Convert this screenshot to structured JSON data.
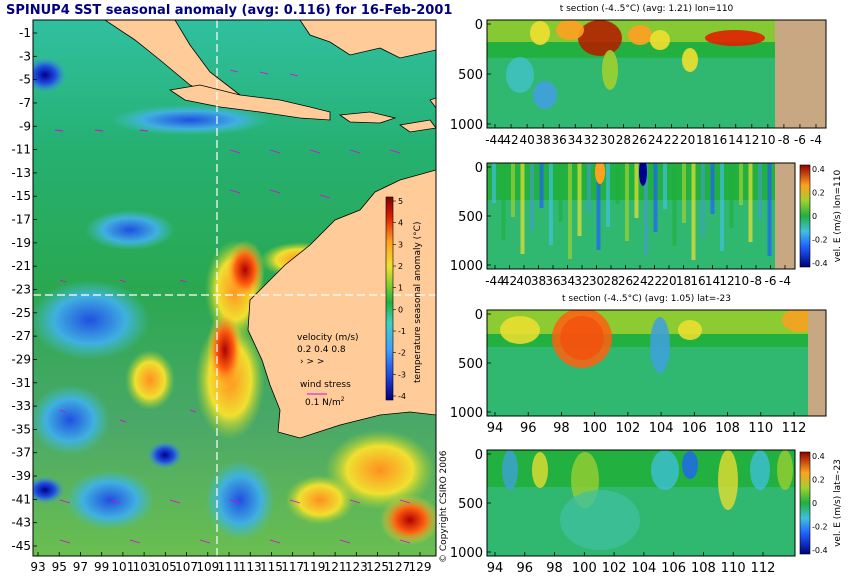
{
  "main_map": {
    "title": "SPINUP4 SST seasonal anomaly (avg: 0.116) for 16-Feb-2001",
    "lat_ticks": [
      "-1",
      "-3",
      "-5",
      "-7",
      "-9",
      "-11",
      "-13",
      "-15",
      "-17",
      "-19",
      "-21",
      "-23",
      "-25",
      "-27",
      "-29",
      "-31",
      "-33",
      "-35",
      "-37",
      "-39",
      "-41",
      "-43",
      "-45"
    ],
    "lon_ticks": [
      "93",
      "95",
      "97",
      "99",
      "101",
      "103",
      "105",
      "107",
      "109",
      "111",
      "113",
      "115",
      "117",
      "119",
      "121",
      "123",
      "125",
      "127",
      "129"
    ],
    "colorbar": {
      "label": "temperature seasonal anomaly (°C)",
      "ticks": [
        "5",
        "4",
        "3",
        "2",
        "1",
        "0",
        "-1",
        "-2",
        "-3",
        "-4"
      ]
    },
    "velocity_legend": {
      "title": "velocity (m/s)",
      "values": "0.2 0.4 0.8"
    },
    "wind_legend": {
      "title": "wind stress",
      "value": "0.1 N/m",
      "superscript": "2"
    },
    "crosshair": {
      "lon": 110,
      "lat": -23
    },
    "copyright": "© Copyright CSIRO 2006"
  },
  "panels": {
    "p1": {
      "title": "t section (-4..5°C) (avg: 1.21) lon=110",
      "y_ticks": [
        "0",
        "500",
        "1000"
      ],
      "x_ticks": [
        "-44",
        "42",
        "40",
        "38",
        "36",
        "34",
        "32",
        "30",
        "28",
        "26",
        "24",
        "22",
        "20",
        "18",
        "16",
        "14",
        "12",
        "10",
        "-8",
        "-6",
        "-4"
      ]
    },
    "p2": {
      "colorbar_label": "vel. E (m/s) lon=110",
      "colorbar_ticks": [
        "0.4",
        "0.2",
        "0",
        "-0.2",
        "-0.4"
      ],
      "y_ticks": [
        "0",
        "500",
        "1000"
      ],
      "x_ticks": [
        "-44",
        "42",
        "40",
        "38",
        "36",
        "34",
        "32",
        "30",
        "28",
        "26",
        "24",
        "22",
        "20",
        "18",
        "16",
        "14",
        "12",
        "10",
        "-8",
        "-6",
        "-4"
      ]
    },
    "p3": {
      "title": "t section (-4..5°C) (avg: 1.05) lat=-23",
      "y_ticks": [
        "0",
        "500",
        "1000"
      ],
      "x_ticks": [
        "94",
        "96",
        "98",
        "100",
        "102",
        "104",
        "106",
        "108",
        "110",
        "112"
      ]
    },
    "p4": {
      "colorbar_label": "vel. E (m/s) lat=-23",
      "colorbar_ticks": [
        "0.4",
        "0.2",
        "0",
        "-0.2",
        "-0.4"
      ],
      "y_ticks": [
        "0",
        "500",
        "1000"
      ],
      "x_ticks": [
        "94",
        "96",
        "98",
        "100",
        "102",
        "104",
        "106",
        "108",
        "110",
        "112"
      ]
    }
  },
  "colors": {
    "land": "#ffcc99",
    "section_land": "#c8a882",
    "ocean_green": "#22b040",
    "vector_magenta": "#e000e0",
    "title_blue": "#000080"
  }
}
